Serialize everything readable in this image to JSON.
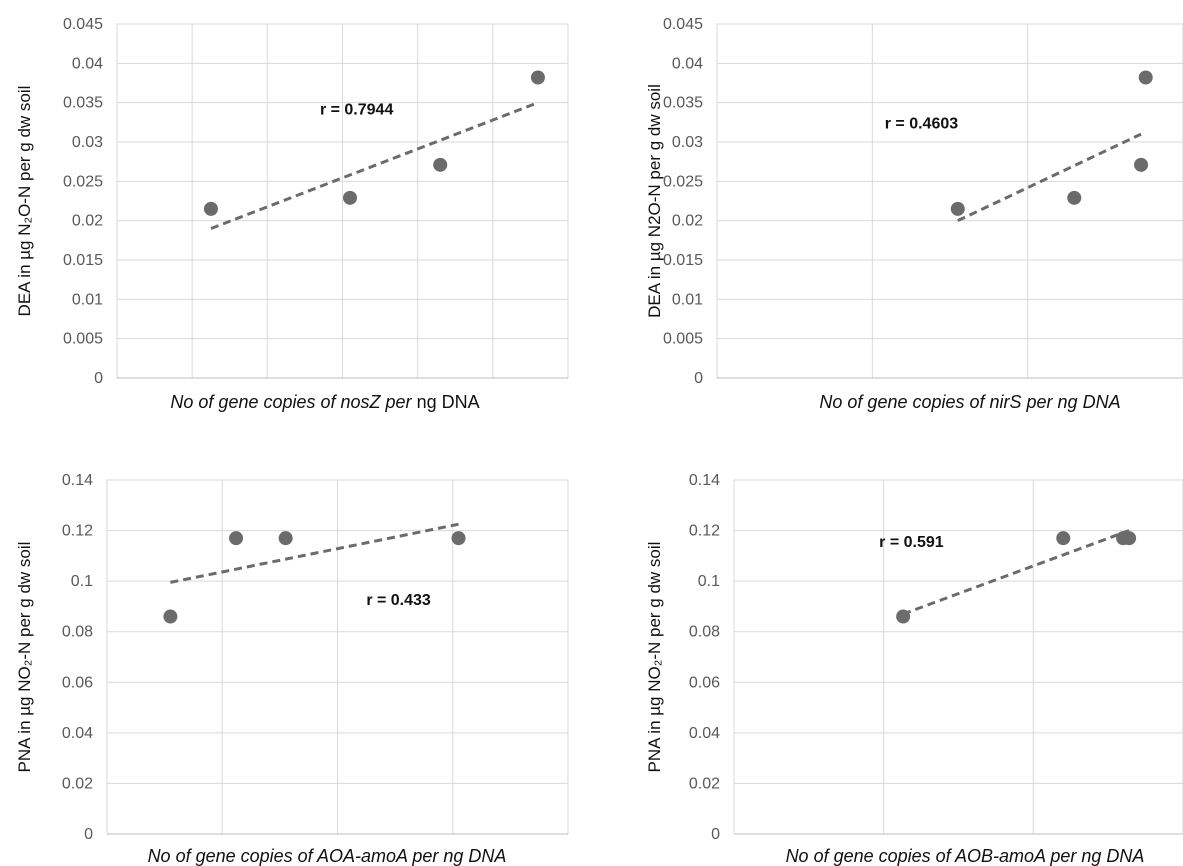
{
  "chart_data": [
    {
      "id": "dea_nosz",
      "type": "scatter",
      "ylabel": "DEA in µg N₂O-N per g dw soil",
      "xlabel_segments": [
        {
          "text": "No of gene copies of nosZ per ",
          "italic": true
        },
        {
          "text": "ng DNA",
          "italic": false
        }
      ],
      "ylim": [
        0,
        0.045
      ],
      "yticks": [
        "0",
        "0.005",
        "0.01",
        "0.015",
        "0.02",
        "0.025",
        "0.03",
        "0.035",
        "0.04",
        "0.045"
      ],
      "xlim": [
        0,
        6
      ],
      "x_gridlines": 5,
      "points": [
        {
          "x": 1.25,
          "y": 0.0215
        },
        {
          "x": 3.1,
          "y": 0.0229
        },
        {
          "x": 4.3,
          "y": 0.0271
        },
        {
          "x": 5.6,
          "y": 0.0382
        }
      ],
      "trendline": [
        {
          "x": 1.25,
          "y": 0.019
        },
        {
          "x": 5.6,
          "y": 0.035
        }
      ],
      "annotation": "r = 0.7944",
      "annotation_at": {
        "x": 2.7,
        "y": 0.0335
      }
    },
    {
      "id": "dea_nirs",
      "type": "scatter",
      "ylabel": "DEA in µg N2O-N per g dw soil",
      "xlabel_segments": [
        {
          "text": "No of gene copies of nirS per ng DNA",
          "italic": true
        }
      ],
      "ylim": [
        0,
        0.045
      ],
      "yticks": [
        "0",
        "0.005",
        "0.01",
        "0.015",
        "0.02",
        "0.025",
        "0.03",
        "0.035",
        "0.04",
        "0.045"
      ],
      "xlim": [
        0,
        3
      ],
      "x_gridlines": 2,
      "points": [
        {
          "x": 1.55,
          "y": 0.0215
        },
        {
          "x": 2.3,
          "y": 0.0229
        },
        {
          "x": 2.73,
          "y": 0.0271
        },
        {
          "x": 2.76,
          "y": 0.0382
        }
      ],
      "trendline": [
        {
          "x": 1.55,
          "y": 0.02
        },
        {
          "x": 2.73,
          "y": 0.031
        }
      ],
      "annotation": "r = 0.4603",
      "annotation_at": {
        "x": 1.08,
        "y": 0.0317
      }
    },
    {
      "id": "pna_aoa",
      "type": "scatter",
      "ylabel": "PNA in µg NO₂-N per g dw soil",
      "xlabel_segments": [
        {
          "text": "No of gene copies of AOA-amoA per ng DNA",
          "italic": true
        }
      ],
      "ylim": [
        0,
        0.14
      ],
      "yticks": [
        "0",
        "0.02",
        "0.04",
        "0.06",
        "0.08",
        "0.1",
        "0.12",
        "0.14"
      ],
      "xlim": [
        0,
        4
      ],
      "x_gridlines": 3,
      "points": [
        {
          "x": 0.55,
          "y": 0.086
        },
        {
          "x": 1.12,
          "y": 0.117
        },
        {
          "x": 1.55,
          "y": 0.117
        },
        {
          "x": 3.05,
          "y": 0.117
        }
      ],
      "trendline": [
        {
          "x": 0.55,
          "y": 0.0995
        },
        {
          "x": 3.05,
          "y": 0.1225
        }
      ],
      "annotation": "r = 0.433",
      "annotation_at": {
        "x": 2.25,
        "y": 0.0905
      }
    },
    {
      "id": "pna_aob",
      "type": "scatter",
      "ylabel": "PNA in µg NO₂-N per g dw soil",
      "xlabel_segments": [
        {
          "text": "No of gene copies of AOB-amoA per ng DNA",
          "italic": true
        }
      ],
      "ylim": [
        0,
        0.14
      ],
      "yticks": [
        "0",
        "0.02",
        "0.04",
        "0.06",
        "0.08",
        "0.1",
        "0.12",
        "0.14"
      ],
      "xlim": [
        0,
        3
      ],
      "x_gridlines": 2,
      "points": [
        {
          "x": 1.13,
          "y": 0.086
        },
        {
          "x": 2.2,
          "y": 0.117
        },
        {
          "x": 2.6,
          "y": 0.117
        },
        {
          "x": 2.64,
          "y": 0.117
        }
      ],
      "trendline": [
        {
          "x": 1.13,
          "y": 0.087
        },
        {
          "x": 2.64,
          "y": 0.12
        }
      ],
      "annotation": "r = 0.591",
      "annotation_at": {
        "x": 0.97,
        "y": 0.1135
      }
    }
  ]
}
